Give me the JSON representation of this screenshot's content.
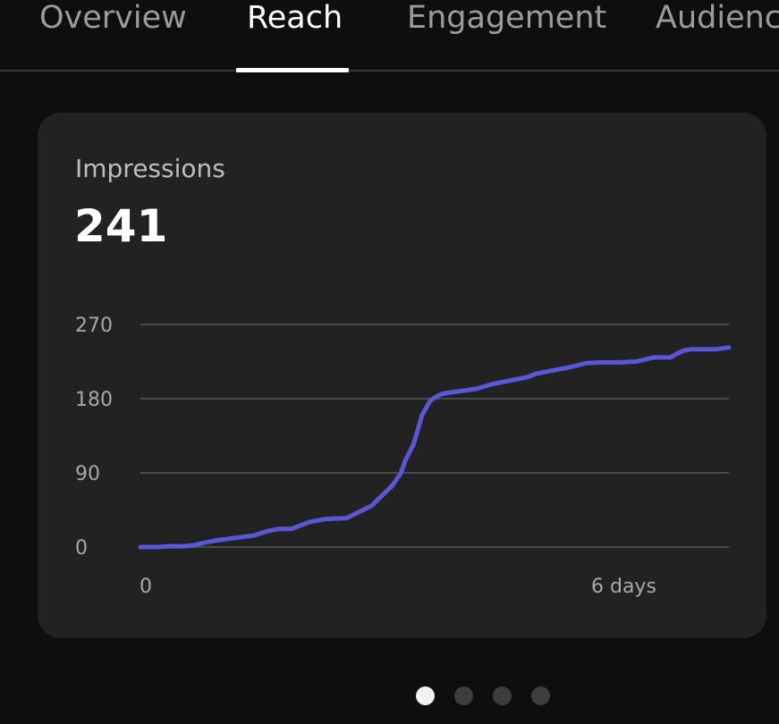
{
  "tabs": [
    {
      "label": "Overview",
      "active": false
    },
    {
      "label": "Reach",
      "active": true
    },
    {
      "label": "Engagement",
      "active": false
    },
    {
      "label": "Audience",
      "active": false
    }
  ],
  "card": {
    "label": "Impressions",
    "value": "241"
  },
  "chart_data": {
    "type": "line",
    "title": "",
    "xlabel": "",
    "ylabel": "",
    "ylim": [
      0,
      270
    ],
    "y_ticks": [
      0,
      90,
      180,
      270
    ],
    "x_tick_labels": [
      "0",
      "6 days"
    ],
    "grid": true,
    "series_color": "#5b56d6",
    "series": [
      {
        "x": [
          0,
          0.2,
          0.35,
          0.5,
          0.62,
          0.75,
          0.9,
          1.05,
          1.2,
          1.35,
          1.5,
          1.65,
          1.8,
          2.0,
          2.2,
          2.45,
          2.75,
          2.85,
          3.0,
          3.1,
          3.15,
          3.25,
          3.35,
          3.45,
          3.55,
          3.6,
          3.65,
          3.72,
          3.8,
          4.0,
          4.2,
          4.4,
          4.6,
          4.7,
          4.9,
          5.1,
          5.3,
          5.5,
          5.7,
          5.9,
          6.1,
          6.3,
          6.45,
          6.55,
          6.7,
          6.85,
          7.0
        ],
        "y": [
          0,
          0,
          1,
          1,
          2,
          5,
          8,
          10,
          12,
          14,
          19,
          22,
          22,
          30,
          34,
          35,
          50,
          60,
          75,
          90,
          105,
          125,
          160,
          178,
          184,
          186,
          187,
          188,
          189,
          192,
          198,
          202,
          206,
          210,
          214,
          218,
          223,
          224,
          224,
          225,
          230,
          230,
          238,
          240,
          240,
          240,
          242
        ]
      }
    ]
  },
  "pager": {
    "count": 4,
    "active_index": 0
  }
}
